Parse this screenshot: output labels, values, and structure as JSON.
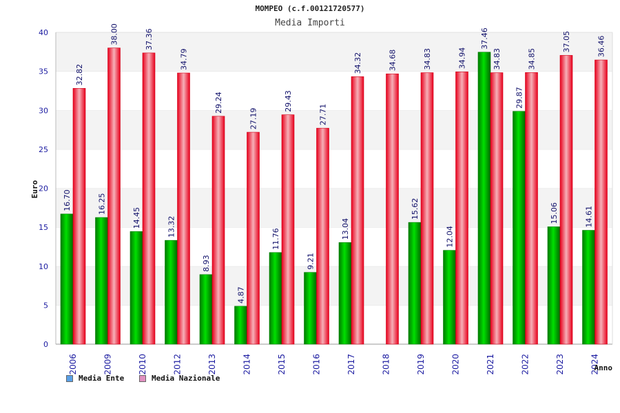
{
  "chart_data": {
    "type": "bar",
    "title": "MOMPEO (c.f.00121720577)",
    "subtitle": "Media Importi",
    "xlabel": "Anno",
    "ylabel": "Euro",
    "ylim": [
      0,
      40
    ],
    "yticks": [
      "0",
      "5",
      "10",
      "15",
      "20",
      "25",
      "30",
      "35",
      "40"
    ],
    "grid": true,
    "legend_position": "bottom-left",
    "categories": [
      "2006",
      "2009",
      "2010",
      "2012",
      "2013",
      "2014",
      "2015",
      "2016",
      "2017",
      "2018",
      "2019",
      "2020",
      "2021",
      "2022",
      "2023",
      "2024"
    ],
    "series": [
      {
        "name": "Media Ente",
        "color": "#00a000",
        "legend_color": "#5aa0e6",
        "values": [
          16.7,
          16.25,
          14.45,
          13.32,
          8.93,
          4.87,
          11.76,
          9.21,
          13.04,
          null,
          15.62,
          12.04,
          37.46,
          29.87,
          15.06,
          14.61
        ],
        "labels": [
          "16.70",
          "16.25",
          "14.45",
          "13.32",
          "8.93",
          "4.87",
          "11.76",
          "9.21",
          "13.04",
          "",
          "15.62",
          "12.04",
          "37.46",
          "29.87",
          "15.06",
          "14.61"
        ]
      },
      {
        "name": "Media Nazionale",
        "color": "#e8001c",
        "legend_color": "#e090c0",
        "values": [
          32.82,
          38.0,
          37.36,
          34.79,
          29.24,
          27.19,
          29.43,
          27.71,
          34.32,
          34.68,
          34.83,
          34.94,
          34.83,
          34.85,
          37.05,
          36.46
        ],
        "labels": [
          "32.82",
          "38.00",
          "37.36",
          "34.79",
          "29.24",
          "27.19",
          "29.43",
          "27.71",
          "34.32",
          "34.68",
          "34.83",
          "34.94",
          "34.83",
          "34.85",
          "37.05",
          "36.46"
        ]
      }
    ]
  }
}
